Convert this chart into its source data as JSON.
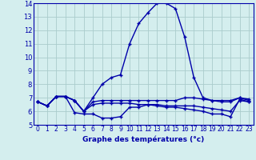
{
  "title": "Graphe des températures (°c)",
  "bg_color": "#d4eeee",
  "grid_color": "#aacccc",
  "line_color": "#0000aa",
  "xlim": [
    -0.5,
    23.5
  ],
  "ylim": [
    5,
    14
  ],
  "yticks": [
    5,
    6,
    7,
    8,
    9,
    10,
    11,
    12,
    13,
    14
  ],
  "xticks": [
    0,
    1,
    2,
    3,
    4,
    5,
    6,
    7,
    8,
    9,
    10,
    11,
    12,
    13,
    14,
    15,
    16,
    17,
    18,
    19,
    20,
    21,
    22,
    23
  ],
  "curve_main_x": [
    0,
    1,
    2,
    3,
    4,
    5,
    6,
    7,
    8,
    9,
    10,
    11,
    12,
    13,
    14,
    15,
    16,
    17,
    18,
    19,
    20,
    21,
    22,
    23
  ],
  "curve_main_y": [
    6.7,
    6.4,
    7.1,
    7.1,
    6.8,
    6.0,
    7.0,
    8.0,
    8.5,
    8.7,
    11.0,
    12.5,
    13.3,
    14.0,
    14.0,
    13.6,
    11.5,
    8.5,
    7.0,
    6.8,
    6.8,
    6.8,
    7.0,
    6.8
  ],
  "curve_flat1_x": [
    0,
    1,
    2,
    3,
    4,
    5,
    6,
    7,
    8,
    9,
    10,
    11,
    12,
    13,
    14,
    15,
    16,
    17,
    18,
    19,
    20,
    21,
    22,
    23
  ],
  "curve_flat1_y": [
    6.7,
    6.4,
    7.1,
    7.1,
    6.8,
    6.0,
    6.7,
    6.8,
    6.8,
    6.8,
    6.8,
    6.8,
    6.8,
    6.8,
    6.8,
    6.8,
    7.0,
    7.0,
    6.9,
    6.8,
    6.7,
    6.7,
    7.0,
    6.9
  ],
  "curve_flat2_x": [
    0,
    1,
    2,
    3,
    4,
    5,
    6,
    7,
    8,
    9,
    10,
    11,
    12,
    13,
    14,
    15,
    16,
    17,
    18,
    19,
    20,
    21,
    22,
    23
  ],
  "curve_flat2_y": [
    6.7,
    6.4,
    7.1,
    7.1,
    6.8,
    6.0,
    6.5,
    6.6,
    6.6,
    6.6,
    6.6,
    6.5,
    6.5,
    6.5,
    6.4,
    6.4,
    6.4,
    6.4,
    6.3,
    6.2,
    6.1,
    6.0,
    6.8,
    6.7
  ],
  "curve_low_x": [
    0,
    1,
    2,
    3,
    4,
    5,
    6,
    7,
    8,
    9,
    10,
    11,
    12,
    13,
    14,
    15,
    16,
    17,
    18,
    19,
    20,
    21,
    22,
    23
  ],
  "curve_low_y": [
    6.7,
    6.4,
    7.1,
    7.1,
    5.9,
    5.8,
    5.8,
    5.5,
    5.5,
    5.6,
    6.3,
    6.3,
    6.5,
    6.4,
    6.3,
    6.3,
    6.2,
    6.1,
    6.0,
    5.8,
    5.8,
    5.6,
    6.9,
    6.7
  ]
}
